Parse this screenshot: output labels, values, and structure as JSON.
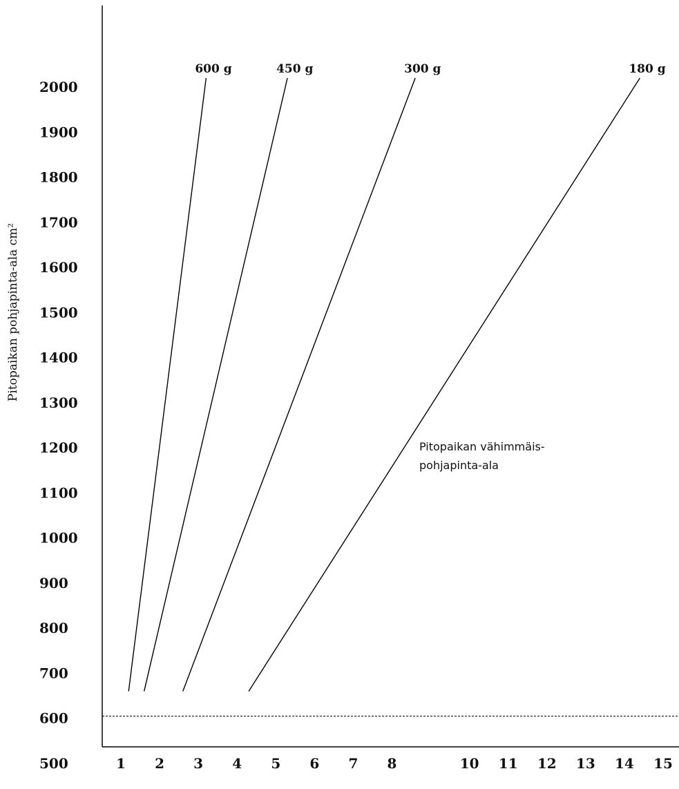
{
  "chart_data": {
    "type": "line",
    "ylabel": "Pitopaikan pohjapinta-ala cm²",
    "xlabel": "",
    "xlim": [
      0,
      15
    ],
    "ylim": [
      500,
      2100
    ],
    "x_ticks": [
      {
        "value": 1,
        "label": "1"
      },
      {
        "value": 2,
        "label": "2"
      },
      {
        "value": 3,
        "label": "3"
      },
      {
        "value": 4,
        "label": "4"
      },
      {
        "value": 5,
        "label": "5"
      },
      {
        "value": 6,
        "label": "6"
      },
      {
        "value": 7,
        "label": "7"
      },
      {
        "value": 8,
        "label": "8"
      },
      {
        "value": 10,
        "label": "10"
      },
      {
        "value": 11,
        "label": "11"
      },
      {
        "value": 12,
        "label": "12"
      },
      {
        "value": 13,
        "label": "13"
      },
      {
        "value": 14,
        "label": "14"
      },
      {
        "value": 15,
        "label": "15"
      }
    ],
    "y_ticks": [
      {
        "value": 500,
        "label": "500"
      },
      {
        "value": 600,
        "label": "600"
      },
      {
        "value": 700,
        "label": "700"
      },
      {
        "value": 800,
        "label": "800"
      },
      {
        "value": 900,
        "label": "900"
      },
      {
        "value": 1000,
        "label": "1000"
      },
      {
        "value": 1100,
        "label": "1100"
      },
      {
        "value": 1200,
        "label": "1200"
      },
      {
        "value": 1300,
        "label": "1300"
      },
      {
        "value": 1400,
        "label": "1400"
      },
      {
        "value": 1500,
        "label": "1500"
      },
      {
        "value": 1600,
        "label": "1600"
      },
      {
        "value": 1700,
        "label": "1700"
      },
      {
        "value": 1800,
        "label": "1800"
      },
      {
        "value": 1900,
        "label": "1900"
      },
      {
        "value": 2000,
        "label": "2000"
      }
    ],
    "series": [
      {
        "name": "600 g",
        "points": [
          [
            1.2,
            660
          ],
          [
            3.2,
            2020
          ]
        ]
      },
      {
        "name": "450 g",
        "points": [
          [
            1.6,
            660
          ],
          [
            5.3,
            2020
          ]
        ]
      },
      {
        "name": "300 g",
        "points": [
          [
            2.6,
            660
          ],
          [
            8.6,
            2020
          ]
        ]
      },
      {
        "name": "180 g",
        "points": [
          [
            4.3,
            660
          ],
          [
            14.4,
            2020
          ]
        ]
      }
    ],
    "reference_line": {
      "y": 605,
      "style": "dashed",
      "label_lines": [
        "Pitopaikan vähimmäis-",
        "pohjapinta-ala"
      ]
    },
    "grid": false,
    "legend": "none"
  }
}
